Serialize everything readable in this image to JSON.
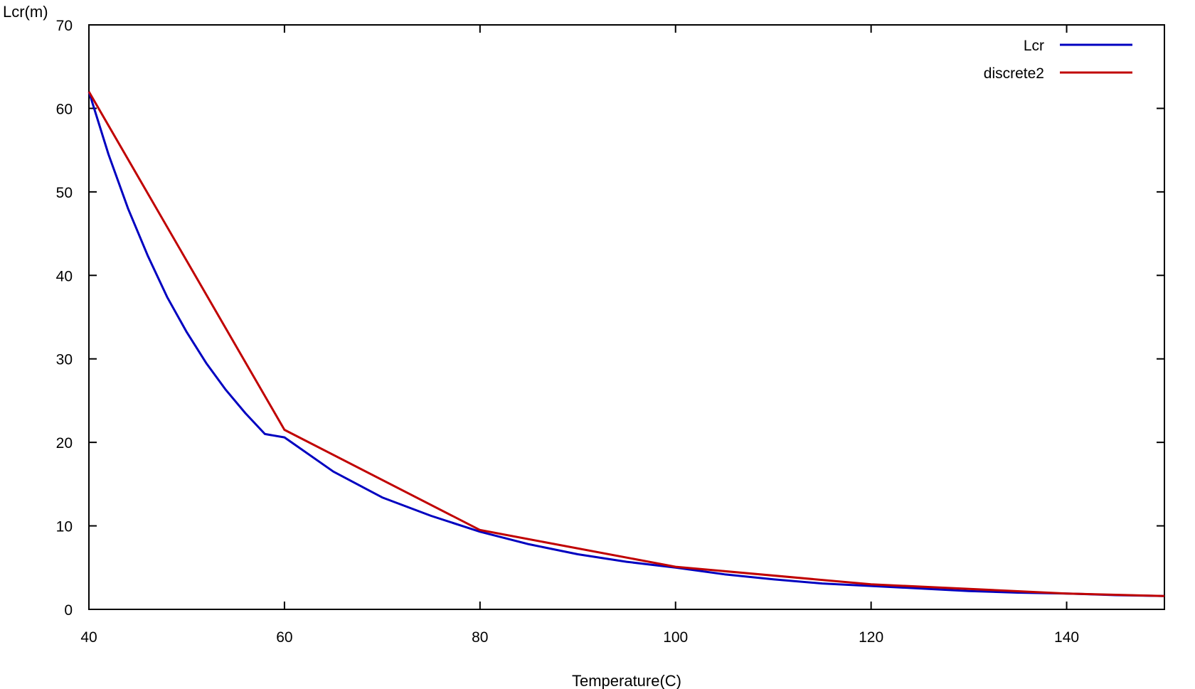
{
  "chart_data": {
    "type": "line",
    "title": "",
    "xlabel": "Temperature(C)",
    "ylabel": "Lcr(m)",
    "xlim": [
      40,
      150
    ],
    "ylim": [
      0,
      70
    ],
    "xticks": [
      40,
      60,
      80,
      100,
      120,
      140
    ],
    "yticks": [
      0,
      10,
      20,
      30,
      40,
      50,
      60,
      70
    ],
    "grid": false,
    "legend_position": "top-right",
    "series": [
      {
        "name": "Lcr",
        "color": "#0000c0",
        "x": [
          40,
          42,
          44,
          46,
          48,
          50,
          52,
          54,
          56,
          58,
          60,
          65,
          70,
          75,
          80,
          85,
          90,
          95,
          100,
          105,
          110,
          115,
          120,
          125,
          130,
          135,
          140,
          145,
          150
        ],
        "y": [
          62.0,
          54.5,
          48.0,
          42.4,
          37.4,
          33.2,
          29.5,
          26.3,
          23.5,
          21.0,
          20.6,
          16.5,
          13.4,
          11.2,
          9.3,
          7.8,
          6.6,
          5.7,
          5.0,
          4.2,
          3.6,
          3.1,
          2.8,
          2.5,
          2.2,
          2.0,
          1.9,
          1.7,
          1.6
        ]
      },
      {
        "name": "discrete2",
        "color": "#c00000",
        "x": [
          40,
          60,
          80,
          100,
          120,
          140,
          150
        ],
        "y": [
          62.0,
          21.5,
          9.5,
          5.1,
          3.0,
          1.9,
          1.6
        ]
      }
    ]
  }
}
